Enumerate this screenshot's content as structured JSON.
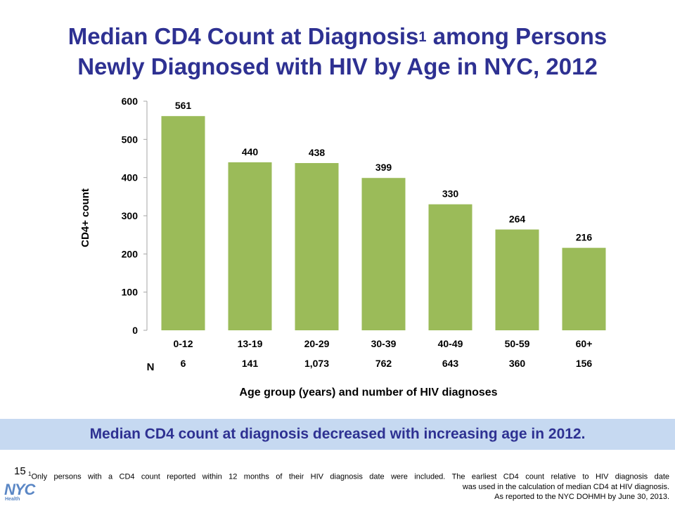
{
  "title": {
    "line1_main": "Median CD4 Count at Diagnosis",
    "line1_sup": "1",
    "line1_rest": " among Persons",
    "line2": "Newly Diagnosed with HIV by Age in NYC, 2012"
  },
  "colors": {
    "bar": "#9bbb59",
    "title": "#2e3192",
    "banner_bg": "#c6d9f1"
  },
  "chart_data": {
    "type": "bar",
    "categories": [
      "0-12",
      "13-19",
      "20-29",
      "30-39",
      "40-49",
      "50-59",
      "60+"
    ],
    "values": [
      561,
      440,
      438,
      399,
      330,
      264,
      216
    ],
    "data_labels": [
      "561",
      "440",
      "438",
      "399",
      "330",
      "264",
      "216"
    ],
    "n_label": "N",
    "n_values": [
      "6",
      "141",
      "1,073",
      "762",
      "643",
      "360",
      "156"
    ],
    "ylabel": "CD4+ count",
    "xlabel": "Age group (years) and number of HIV diagnoses",
    "ylim": [
      0,
      600
    ],
    "yticks": [
      "0",
      "100",
      "200",
      "300",
      "400",
      "500",
      "600"
    ],
    "grid": false,
    "legend": "none"
  },
  "banner": "Median CD4 count at diagnosis decreased with increasing age in 2012.",
  "slide_number": "15",
  "footnote": {
    "sup": "1",
    "line1": "Only persons with a CD4 count reported within 12 months of their HIV diagnosis date were included. The earliest CD4 count relative to HIV diagnosis date",
    "line2": "was used in the calculation of median CD4 at HIV diagnosis.",
    "line3": "As reported to the NYC DOHMH by June 30, 2013."
  },
  "logo": {
    "text": "NYC",
    "subtext": "Health"
  }
}
